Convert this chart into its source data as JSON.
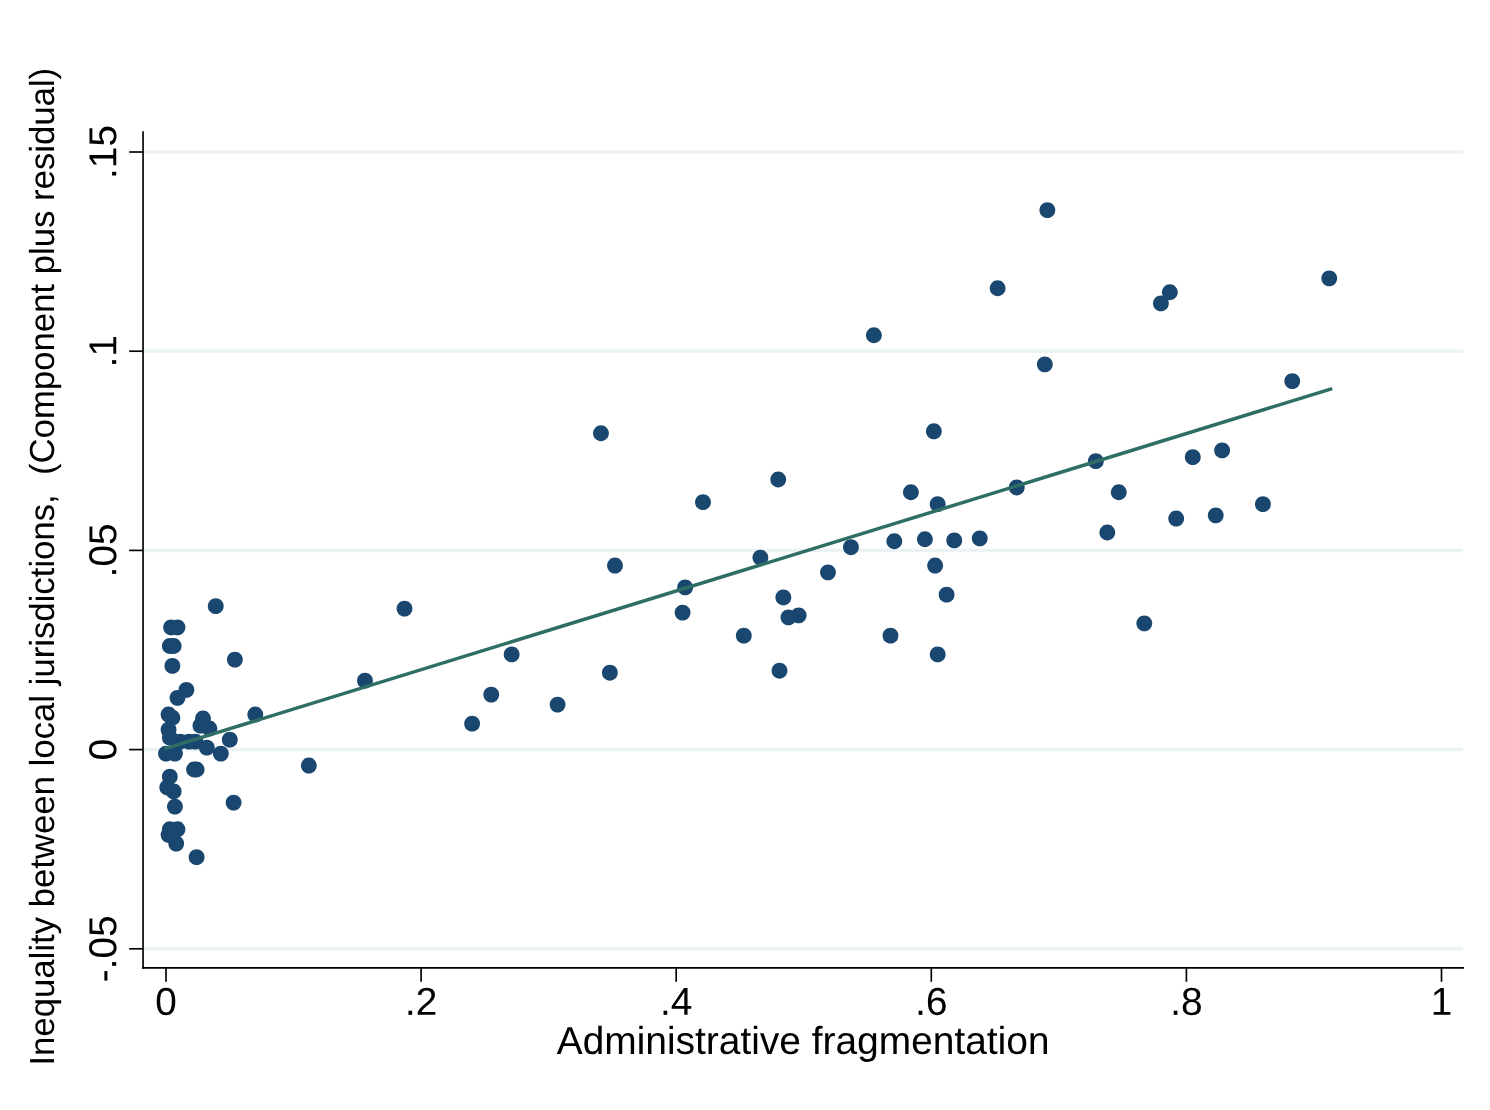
{
  "chart_data": {
    "type": "scatter",
    "xlabel": "Administrative fragmentation",
    "ylabel": "Inequality between local jurisdictions,  (Component plus residual)",
    "xlim": [
      -0.018,
      1.017
    ],
    "ylim": [
      -0.0548,
      0.155
    ],
    "xticks": [
      {
        "value": 0,
        "label": "0"
      },
      {
        "value": 0.2,
        "label": ".2"
      },
      {
        "value": 0.4,
        "label": ".4"
      },
      {
        "value": 0.6,
        "label": ".6"
      },
      {
        "value": 0.8,
        "label": ".8"
      },
      {
        "value": 1,
        "label": "1"
      }
    ],
    "yticks": [
      {
        "value": -0.05,
        "label": "-.05"
      },
      {
        "value": 0,
        "label": "0"
      },
      {
        "value": 0.05,
        "label": ".05"
      },
      {
        "value": 0.1,
        "label": ".1"
      },
      {
        "value": 0.15,
        "label": ".15"
      }
    ],
    "grid": "y",
    "series": [
      {
        "color": "#1a476f",
        "marker": "circle",
        "x": [
          0.039,
          0.004,
          0.009,
          0.003,
          0.006,
          0.005,
          0.016,
          0.009,
          0.054,
          0.07,
          0.002,
          0.005,
          0.029,
          0.027,
          0.034,
          0.002,
          0.003,
          0.018,
          0.011,
          0.023,
          0.007,
          0.0,
          0.05,
          0.032,
          0.043,
          0.022,
          0.024,
          0.003,
          0.001,
          0.006,
          0.007,
          0.053,
          0.003,
          0.009,
          0.002,
          0.008,
          0.024,
          0.112,
          0.156,
          0.187,
          0.24,
          0.255,
          0.271,
          0.307,
          0.341,
          0.348,
          0.352,
          0.405,
          0.407,
          0.421,
          0.453,
          0.466,
          0.48,
          0.481,
          0.484,
          0.488,
          0.496,
          0.519,
          0.537,
          0.555,
          0.568,
          0.571,
          0.584,
          0.595,
          0.602,
          0.603,
          0.605,
          0.605,
          0.612,
          0.618,
          0.638,
          0.652,
          0.667,
          0.689,
          0.691,
          0.729,
          0.738,
          0.747,
          0.767,
          0.78,
          0.787,
          0.792,
          0.805,
          0.823,
          0.828,
          0.86,
          0.883,
          0.912
        ],
        "values": [
          0.036,
          0.0307,
          0.0307,
          0.026,
          0.026,
          0.021,
          0.015,
          0.013,
          0.0226,
          0.0088,
          0.0088,
          0.008,
          0.0078,
          0.006,
          0.0053,
          0.005,
          0.003,
          0.002,
          0.002,
          0.002,
          -0.001,
          -0.001,
          0.0025,
          0.0005,
          -0.001,
          -0.005,
          -0.005,
          -0.0068,
          -0.0095,
          -0.0105,
          -0.0143,
          -0.0133,
          -0.02,
          -0.02,
          -0.0214,
          -0.0236,
          -0.027,
          -0.004,
          0.0173,
          0.0354,
          0.0065,
          0.0138,
          0.0239,
          0.0113,
          0.0794,
          0.0193,
          0.0462,
          0.0344,
          0.0407,
          0.0621,
          0.0286,
          0.0482,
          0.0678,
          0.0198,
          0.0382,
          0.0332,
          0.0337,
          0.0445,
          0.0508,
          0.104,
          0.0286,
          0.0523,
          0.0646,
          0.0528,
          0.0799,
          0.0462,
          0.0616,
          0.0239,
          0.0389,
          0.0525,
          0.053,
          0.1158,
          0.0658,
          0.0967,
          0.1354,
          0.0724,
          0.0545,
          0.0646,
          0.0317,
          0.112,
          0.1148,
          0.058,
          0.0734,
          0.0588,
          0.0751,
          0.0616,
          0.0925,
          0.1183
        ]
      },
      {
        "type": "line",
        "color": "#2e6e65",
        "x": [
          0.0,
          0.913
        ],
        "values": [
          0.0003,
          0.0905
        ]
      }
    ]
  }
}
